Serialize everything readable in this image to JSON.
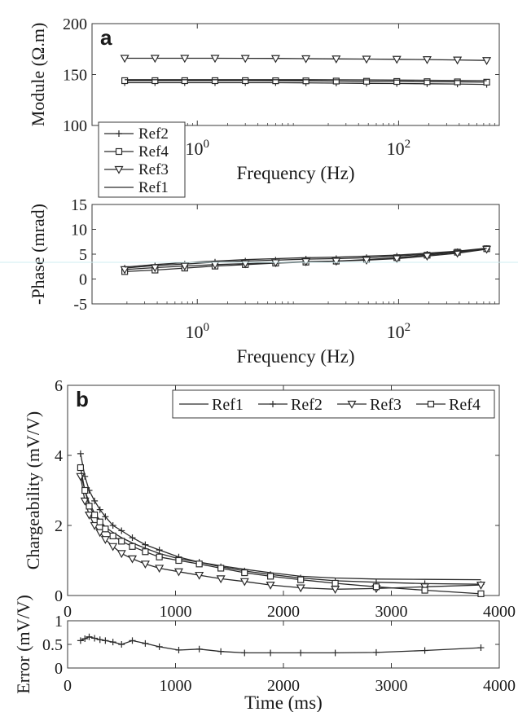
{
  "colors": {
    "ink": "#2a2a2a",
    "grid": "#bfbfbf",
    "axes": "#3a3a3a",
    "background": "#ffffff"
  },
  "chart_data": [
    {
      "type": "line",
      "panel": "a",
      "title": "",
      "xlabel": "Frequency (Hz)",
      "ylabel": "Module (Ω.m)",
      "xscale": "log",
      "xlim": [
        0.09,
        1000
      ],
      "ylim": [
        100,
        200
      ],
      "xticks": [
        1,
        100
      ],
      "xtick_labels": [
        {
          "base": "10",
          "exp": "0"
        },
        {
          "base": "10",
          "exp": "2"
        }
      ],
      "yticks": [
        100,
        150,
        200
      ],
      "grid": false,
      "legend": {
        "placement": "lower-left, outside axes",
        "entries": [
          "Ref2",
          "Ref4",
          "Ref3",
          "Ref1"
        ]
      },
      "x": [
        0.19,
        0.38,
        0.75,
        1.5,
        3,
        6,
        12,
        24,
        48,
        96,
        192,
        384,
        750
      ],
      "series": [
        {
          "name": "Ref2",
          "marker": "plus",
          "values": [
            142,
            142,
            142,
            142,
            142,
            142,
            141.8,
            141.6,
            141.4,
            141.2,
            141,
            140.7,
            140.3
          ]
        },
        {
          "name": "Ref4",
          "marker": "square",
          "values": [
            144,
            144,
            144,
            144,
            144,
            143.9,
            143.8,
            143.6,
            143.4,
            143.2,
            143,
            142.8,
            142.5
          ]
        },
        {
          "name": "Ref3",
          "marker": "triangle-down",
          "values": [
            166,
            166,
            166,
            166,
            165.9,
            165.8,
            165.6,
            165.4,
            165.2,
            165,
            164.7,
            164.3,
            163.8
          ]
        },
        {
          "name": "Ref1",
          "marker": "none",
          "values": [
            145,
            145,
            145,
            145,
            145,
            145,
            145,
            144.9,
            144.8,
            144.6,
            144.4,
            144.2,
            144
          ]
        }
      ]
    },
    {
      "type": "line",
      "panel": "",
      "title": "",
      "xlabel": "Frequency (Hz)",
      "ylabel": "-Phase (mrad)",
      "xscale": "log",
      "xlim": [
        0.09,
        1000
      ],
      "ylim": [
        -5,
        15
      ],
      "xticks": [
        1,
        100
      ],
      "xtick_labels": [
        {
          "base": "10",
          "exp": "0"
        },
        {
          "base": "10",
          "exp": "2"
        }
      ],
      "yticks": [
        -5,
        0,
        5,
        10,
        15
      ],
      "grid": false,
      "x": [
        0.19,
        0.38,
        0.75,
        1.5,
        3,
        6,
        12,
        24,
        48,
        96,
        192,
        384,
        750
      ],
      "series": [
        {
          "name": "Ref2",
          "marker": "plus",
          "values": [
            2.2,
            2.7,
            3.0,
            3.4,
            3.6,
            3.8,
            4.0,
            4.1,
            4.3,
            4.6,
            5.0,
            5.5,
            6.1
          ]
        },
        {
          "name": "Ref4",
          "marker": "square",
          "values": [
            1.5,
            1.8,
            2.2,
            2.6,
            2.9,
            3.2,
            3.4,
            3.6,
            3.9,
            4.3,
            4.8,
            5.4,
            6.1
          ]
        },
        {
          "name": "Ref3",
          "marker": "triangle-down",
          "values": [
            1.9,
            2.3,
            2.6,
            2.9,
            3.1,
            3.3,
            3.5,
            3.6,
            3.8,
            4.1,
            4.6,
            5.2,
            6.0
          ]
        },
        {
          "name": "Ref1",
          "marker": "none",
          "values": [
            2.4,
            2.9,
            3.3,
            3.6,
            3.9,
            4.1,
            4.3,
            4.4,
            4.6,
            4.8,
            5.2,
            5.6,
            6.2
          ]
        }
      ]
    },
    {
      "type": "line",
      "panel": "b",
      "title": "",
      "xlabel": "",
      "ylabel": "Chargeability (mV/V)",
      "xlim": [
        0,
        4000
      ],
      "ylim": [
        0,
        6
      ],
      "xticks": [
        0,
        1000,
        2000,
        3000,
        4000
      ],
      "yticks": [
        0,
        2,
        4,
        6
      ],
      "grid": false,
      "legend": {
        "placement": "top-right",
        "entries": [
          "Ref1",
          "Ref2",
          "Ref3",
          "Ref4"
        ]
      },
      "x": [
        120,
        160,
        200,
        250,
        300,
        350,
        420,
        500,
        600,
        720,
        850,
        1030,
        1220,
        1420,
        1640,
        1880,
        2160,
        2480,
        2860,
        3310,
        3830
      ],
      "series": [
        {
          "name": "Ref1",
          "marker": "none",
          "values": [
            3.5,
            3.0,
            2.65,
            2.35,
            2.15,
            1.95,
            1.8,
            1.65,
            1.5,
            1.35,
            1.2,
            1.05,
            0.95,
            0.85,
            0.75,
            0.65,
            0.55,
            0.5,
            0.47,
            0.46,
            0.45
          ]
        },
        {
          "name": "Ref2",
          "marker": "plus",
          "values": [
            4.05,
            3.4,
            3.0,
            2.7,
            2.45,
            2.25,
            2.0,
            1.85,
            1.65,
            1.45,
            1.3,
            1.1,
            0.95,
            0.82,
            0.7,
            0.6,
            0.5,
            0.42,
            0.38,
            0.34,
            0.32
          ]
        },
        {
          "name": "Ref3",
          "marker": "triangle-down",
          "values": [
            3.4,
            2.7,
            2.3,
            2.0,
            1.8,
            1.6,
            1.4,
            1.2,
            1.05,
            0.9,
            0.78,
            0.68,
            0.58,
            0.48,
            0.4,
            0.3,
            0.22,
            0.18,
            0.2,
            0.25,
            0.3
          ]
        },
        {
          "name": "Ref4",
          "marker": "square",
          "values": [
            3.65,
            3.0,
            2.55,
            2.3,
            2.1,
            1.9,
            1.7,
            1.55,
            1.4,
            1.25,
            1.1,
            1.0,
            0.9,
            0.78,
            0.65,
            0.55,
            0.45,
            0.35,
            0.25,
            0.15,
            0.05
          ]
        }
      ]
    },
    {
      "type": "line",
      "panel": "",
      "title": "",
      "xlabel": "Time (ms)",
      "ylabel": "Error (mV/V)",
      "xlim": [
        0,
        4000
      ],
      "ylim": [
        0,
        1
      ],
      "xticks": [
        0,
        1000,
        2000,
        3000,
        4000
      ],
      "yticks": [
        0,
        0.5,
        1
      ],
      "grid": false,
      "x": [
        120,
        160,
        200,
        250,
        300,
        350,
        420,
        500,
        600,
        720,
        850,
        1030,
        1220,
        1420,
        1640,
        1880,
        2160,
        2480,
        2860,
        3310,
        3830
      ],
      "series": [
        {
          "name": "",
          "marker": "plus",
          "values": [
            0.58,
            0.62,
            0.66,
            0.63,
            0.6,
            0.58,
            0.55,
            0.5,
            0.58,
            0.52,
            0.45,
            0.38,
            0.4,
            0.35,
            0.32,
            0.32,
            0.32,
            0.32,
            0.33,
            0.37,
            0.43
          ]
        }
      ]
    }
  ]
}
